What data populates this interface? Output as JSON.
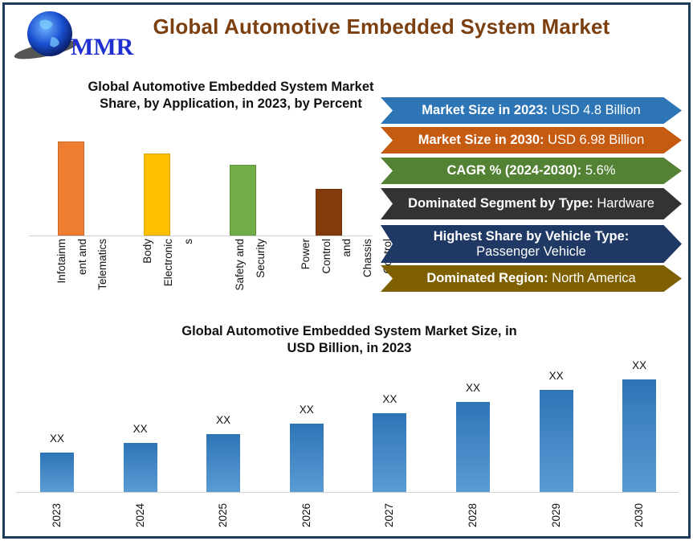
{
  "header": {
    "title": "Global Automotive Embedded System Market",
    "logo_text": "MMR"
  },
  "highlights": [
    {
      "label": "Market Size in 2023:",
      "value": "USD 4.8  Billion",
      "color": "#2e75b6"
    },
    {
      "label": "Market Size in 2030:",
      "value": "USD 6.98 Billion",
      "color": "#c55a11"
    },
    {
      "label": "CAGR % (2024-2030):",
      "value": "5.6%",
      "color": "#548235"
    },
    {
      "label": "Dominated Segment by Type:",
      "value": "Hardware",
      "color": "#333333"
    },
    {
      "label": "Highest Share by Vehicle Type:",
      "value": "Passenger Vehicle",
      "color": "#1f3864",
      "stacked": true
    },
    {
      "label": "Dominated Region:",
      "value": "North America",
      "color": "#7f6000"
    }
  ],
  "chart_data": [
    {
      "type": "bar",
      "title": "Global Automotive Embedded System Market Share, by Application, in 2023, by Percent",
      "categories": [
        "Infotainment and Telematics",
        "Body Electronics",
        "Safety and Security",
        "Power Control and Chassis Control"
      ],
      "category_lines": [
        [
          "Infotainm",
          "ent and",
          "Telematics"
        ],
        [
          "Body",
          "Electronic",
          "s"
        ],
        [
          "Safety and",
          "Security"
        ],
        [
          "Power",
          "Control",
          "and",
          "Chassis",
          "Control"
        ]
      ],
      "values": [
        32,
        28,
        24,
        16
      ],
      "colors": [
        "#ed7d31",
        "#ffc000",
        "#70ad47",
        "#843c0c"
      ],
      "ylim": [
        0,
        37
      ],
      "grid": false,
      "legend": "none"
    },
    {
      "type": "bar",
      "title": "Global Automotive Embedded System Market Size, in USD Billion, in 2023",
      "categories": [
        "2023",
        "2024",
        "2025",
        "2026",
        "2027",
        "2028",
        "2029",
        "2030"
      ],
      "values": [
        4.8,
        5.07,
        5.35,
        5.65,
        5.97,
        6.3,
        6.65,
        6.98
      ],
      "data_labels": [
        "XX",
        "XX",
        "XX",
        "XX",
        "XX",
        "XX",
        "XX",
        "XX"
      ],
      "colors": [
        "#2e75b6"
      ],
      "ylim": [
        3.62,
        7.5
      ],
      "grid": false,
      "legend": "none"
    }
  ]
}
